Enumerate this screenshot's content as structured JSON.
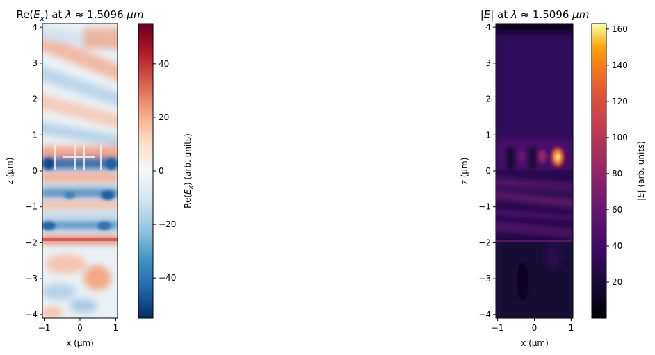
{
  "chart_data": [
    {
      "type": "heatmap",
      "title": "Re(E_x) at λ ≈ 1.5096 µm",
      "title_parts": {
        "pre": "Re(",
        "sym": "E",
        "sub": "x",
        "post": ") at ",
        "lam": "λ",
        "approx": " ≈ 1.5096 ",
        "unit": "µm"
      },
      "xlabel": "x (µm)",
      "ylabel": "z (µm)",
      "xlim": [
        -1.05,
        1.05
      ],
      "ylim": [
        -4.1,
        4.1
      ],
      "xticks": [
        {
          "v": -1,
          "label": "−1"
        },
        {
          "v": 0,
          "label": "0"
        },
        {
          "v": 1,
          "label": "1"
        }
      ],
      "yticks": [
        {
          "v": 4,
          "label": "4"
        },
        {
          "v": 3,
          "label": "3"
        },
        {
          "v": 2,
          "label": "2"
        },
        {
          "v": 1,
          "label": "1"
        },
        {
          "v": 0,
          "label": "0"
        },
        {
          "v": -1,
          "label": "−1"
        },
        {
          "v": -2,
          "label": "−2"
        },
        {
          "v": -3,
          "label": "−3"
        },
        {
          "v": -4,
          "label": "−4"
        }
      ],
      "colormap": "RdBu_r",
      "colorbar": {
        "label": "Re(E_x) (arb. units)",
        "label_parts": {
          "pre": "Re(",
          "sym": "E",
          "sub": "x",
          "post": ") (arb. units)"
        },
        "range": [
          -55,
          55
        ],
        "ticks": [
          {
            "v": 40,
            "label": "40"
          },
          {
            "v": 20,
            "label": "20"
          },
          {
            "v": 0,
            "label": "0"
          },
          {
            "v": -20,
            "label": "−20"
          },
          {
            "v": -40,
            "label": "−40"
          }
        ]
      }
    },
    {
      "type": "heatmap",
      "title": "|E| at λ ≈ 1.5096 µm",
      "title_parts": {
        "pre": "|",
        "sym": "E",
        "post": "| at ",
        "lam": "λ",
        "approx": " ≈ 1.5096 ",
        "unit": "µm"
      },
      "xlabel": "x (µm)",
      "ylabel": "z (µm)",
      "xlim": [
        -1.05,
        1.05
      ],
      "ylim": [
        -4.1,
        4.1
      ],
      "xticks": [
        {
          "v": -1,
          "label": "−1"
        },
        {
          "v": 0,
          "label": "0"
        },
        {
          "v": 1,
          "label": "1"
        }
      ],
      "yticks": [
        {
          "v": 4,
          "label": "4"
        },
        {
          "v": 3,
          "label": "3"
        },
        {
          "v": 2,
          "label": "2"
        },
        {
          "v": 1,
          "label": "1"
        },
        {
          "v": 0,
          "label": "0"
        },
        {
          "v": -1,
          "label": "−1"
        },
        {
          "v": -2,
          "label": "−2"
        },
        {
          "v": -3,
          "label": "−3"
        },
        {
          "v": -4,
          "label": "−4"
        }
      ],
      "colormap": "inferno",
      "colorbar": {
        "label": "|E| (arb. units)",
        "label_parts": {
          "pre": "|",
          "sym": "E",
          "post": "| (arb. units)"
        },
        "range": [
          0,
          163
        ],
        "ticks": [
          {
            "v": 160,
            "label": "160"
          },
          {
            "v": 140,
            "label": "140"
          },
          {
            "v": 120,
            "label": "120"
          },
          {
            "v": 100,
            "label": "100"
          },
          {
            "v": 80,
            "label": "80"
          },
          {
            "v": 60,
            "label": "60"
          },
          {
            "v": 40,
            "label": "40"
          },
          {
            "v": 20,
            "label": "20"
          }
        ]
      }
    }
  ]
}
